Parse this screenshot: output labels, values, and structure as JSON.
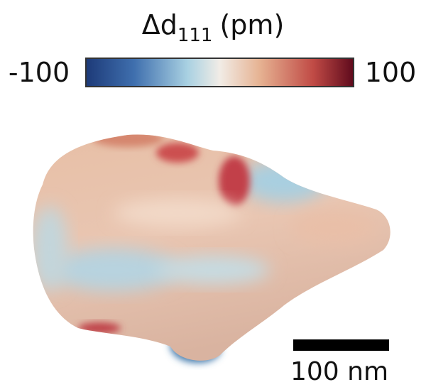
{
  "colorbar": {
    "label": {
      "symbol": "Δd",
      "subscript": "111",
      "unit": "(pm)"
    },
    "min": -100,
    "max": 100
  },
  "scale_bar": {
    "label": "100 nm"
  }
}
